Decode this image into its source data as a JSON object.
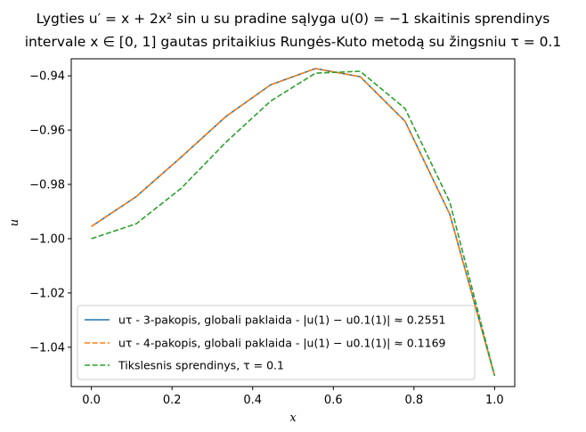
{
  "chart_data": {
    "type": "line",
    "title_line1": "Lygties u′ = x + 2x² sin u su pradine sąlyga u(0) = −1 skaitinis sprendinys",
    "title_line2": "intervale x ∈ [0, 1] gautas pritaikius Rungės-Kuto metodą su žingsniu τ = 0.1",
    "xlabel": "x",
    "ylabel": "u",
    "xlim": [
      -0.05,
      1.05
    ],
    "ylim": [
      -1.0545,
      -0.9337
    ],
    "x_ticks": [
      "0.0",
      "0.2",
      "0.4",
      "0.6",
      "0.8",
      "1.0"
    ],
    "y_ticks": [
      "-0.94",
      "-0.96",
      "-0.98",
      "-1.00",
      "-1.02",
      "-1.04"
    ],
    "grid": false,
    "legend_position": "lower-left",
    "x": [
      0.0,
      0.1111,
      0.2222,
      0.3333,
      0.4444,
      0.5556,
      0.6667,
      0.7778,
      0.8889,
      1.0
    ],
    "series": [
      {
        "name": "u_τ - 3-pakopis, globali paklaida - |u(1) − u_0.1(1)| ≈ 0.2551",
        "legend_label": "uτ - 3-pakopis, globali paklaida - |u(1) − u0.1(1)| ≈ 0.2551",
        "color": "#1f77b4",
        "style": "solid",
        "values": [
          -0.9955,
          -0.9845,
          -0.97,
          -0.955,
          -0.9433,
          -0.9373,
          -0.9403,
          -0.9567,
          -0.991,
          -1.0505
        ]
      },
      {
        "name": "u_τ - 4-pakopis, globali paklaida - |u(1) − u_0.1(1)| ≈ 0.1169",
        "legend_label": "uτ - 4-pakopis, globali paklaida - |u(1) − u0.1(1)| ≈ 0.1169",
        "color": "#ff7f0e",
        "style": "dashed",
        "values": [
          -0.9955,
          -0.9845,
          -0.97,
          -0.955,
          -0.9433,
          -0.9373,
          -0.9403,
          -0.9567,
          -0.991,
          -1.0505
        ]
      },
      {
        "name": "Tikslesnis sprendinys, τ = 0.1",
        "legend_label": "Tikslesnis sprendinys, τ = 0.1",
        "color": "#2ca02c",
        "style": "dashed",
        "values": [
          -1.0,
          -0.9945,
          -0.9815,
          -0.9645,
          -0.9493,
          -0.939,
          -0.9383,
          -0.952,
          -0.9865,
          -1.0505
        ]
      }
    ]
  }
}
